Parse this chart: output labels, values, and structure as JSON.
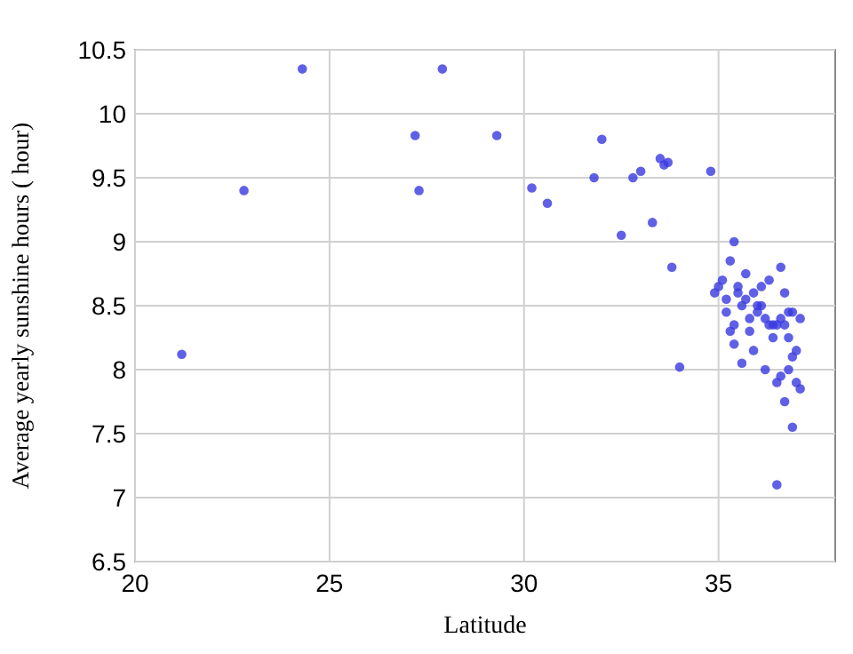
{
  "chart_data": {
    "type": "scatter",
    "xlabel": "Latitude",
    "ylabel": "Average yearly sunshine hours ( hour)",
    "xlim": [
      20,
      38
    ],
    "xticks": [
      20,
      25,
      30,
      35
    ],
    "ylim": [
      6.5,
      10.5
    ],
    "yticks": [
      6.5,
      7,
      7.5,
      8,
      8.5,
      9,
      9.5,
      10,
      10.5
    ],
    "grid": true,
    "marker": "circle",
    "x": [
      21.2,
      22.8,
      24.3,
      27.2,
      27.3,
      27.9,
      29.3,
      30.2,
      30.6,
      31.8,
      32,
      32.5,
      32.8,
      33,
      33.3,
      33.5,
      33.6,
      33.7,
      33.8,
      34,
      34.8,
      35,
      34.9,
      35.1,
      35.2,
      35.3,
      35.4,
      35.5,
      35.3,
      35.6,
      35.2,
      35.4,
      35.7,
      35.8,
      35.9,
      36,
      36.1,
      36.2,
      36.3,
      36.4,
      36.5,
      36.6,
      36.7,
      36.8,
      36.3,
      36.1,
      35.6,
      35.9,
      36.5,
      36.7,
      36.9,
      37,
      36.8,
      36.6,
      37.1,
      36.9,
      36.5,
      35.4,
      35.8,
      36.4,
      36.2,
      36.0,
      35.5,
      35.7,
      36.6,
      36.9,
      36.8,
      37.0,
      37.1,
      36.7
    ],
    "values": [
      8.12,
      9.4,
      10.35,
      9.83,
      9.4,
      10.35,
      9.83,
      9.42,
      9.3,
      9.5,
      9.8,
      9.05,
      9.5,
      9.55,
      9.15,
      9.65,
      9.6,
      9.62,
      8.8,
      8.02,
      9.55,
      8.65,
      8.6,
      8.7,
      8.55,
      8.85,
      9.0,
      8.6,
      8.3,
      8.5,
      8.45,
      8.2,
      8.55,
      8.4,
      8.6,
      8.45,
      8.5,
      8.4,
      8.35,
      8.35,
      8.35,
      8.4,
      8.35,
      8.45,
      8.7,
      8.65,
      8.05,
      8.15,
      7.1,
      7.75,
      7.55,
      7.9,
      8.0,
      7.95,
      7.85,
      8.1,
      7.9,
      8.35,
      8.3,
      8.25,
      8.0,
      8.5,
      8.65,
      8.75,
      8.8,
      8.45,
      8.25,
      8.15,
      8.4,
      8.6
    ],
    "color": "#3838e0"
  }
}
